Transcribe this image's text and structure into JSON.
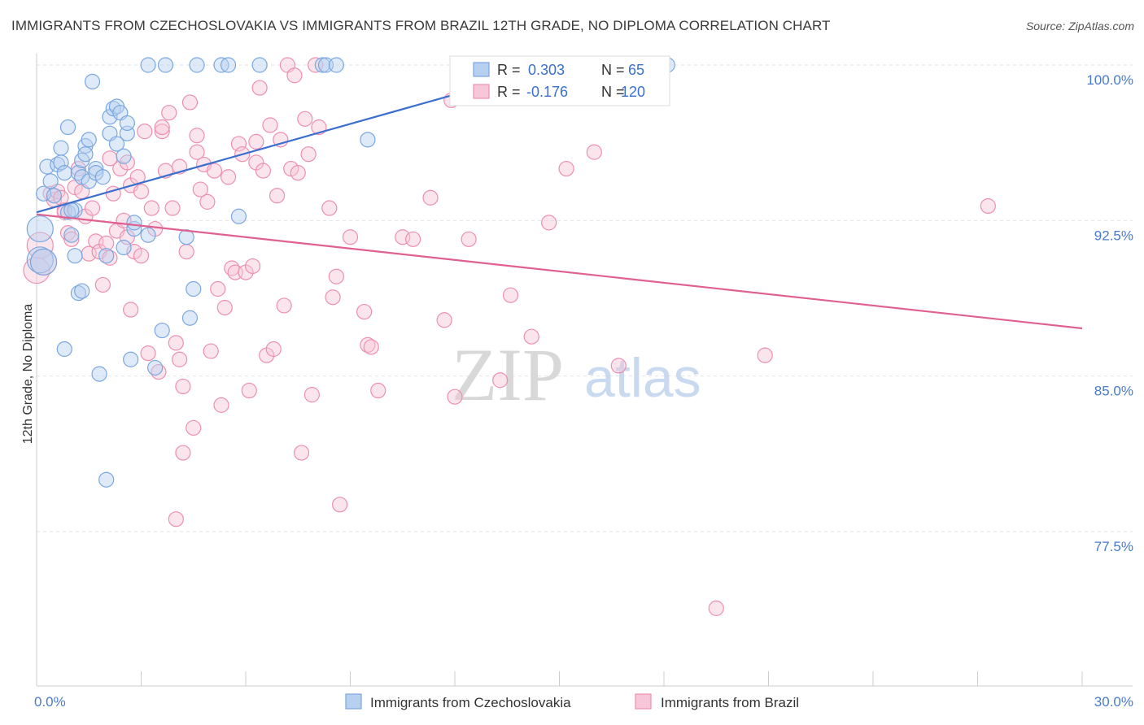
{
  "title": "IMMIGRANTS FROM CZECHOSLOVAKIA VS IMMIGRANTS FROM BRAZIL 12TH GRADE, NO DIPLOMA CORRELATION CHART",
  "source": "Source: ZipAtlas.com",
  "watermark": {
    "zip": "ZIP",
    "atlas": "atlas"
  },
  "colors": {
    "blue": "#7aa7e0",
    "blue_fill": "#b8d0f0",
    "pink": "#ec8fb0",
    "pink_fill": "#f7c6d8",
    "blue_line": "#3a6fd0",
    "pink_line": "#e0608f",
    "tick": "#4a7bc8"
  },
  "legend": {
    "r_label": "R =",
    "n_label": "N =",
    "blue": {
      "r": "0.303",
      "n": "65"
    },
    "pink": {
      "r": "-0.176",
      "n": "120"
    }
  },
  "bottom_legend": {
    "czech": "Immigrants from Czechoslovakia",
    "brazil": "Immigrants from Brazil"
  },
  "chart_data": {
    "type": "scatter",
    "title": "IMMIGRANTS FROM CZECHOSLOVAKIA VS IMMIGRANTS FROM BRAZIL 12TH GRADE, NO DIPLOMA CORRELATION CHART",
    "xlabel": "",
    "ylabel": "12th Grade, No Diploma",
    "xlim": [
      0,
      30
    ],
    "ylim": [
      71.0,
      101.0
    ],
    "x_tick_labels": [
      "0.0%",
      "30.0%"
    ],
    "y_ticks": [
      77.5,
      85.0,
      92.5,
      100.0
    ],
    "y_tick_labels": [
      "77.5%",
      "85.0%",
      "92.5%",
      "100.0%"
    ],
    "series": [
      {
        "name": "Immigrants from Czechoslovakia",
        "color": "#7aa7e0",
        "trend": {
          "x": [
            0,
            15
          ],
          "y": [
            92.9,
            100.0
          ]
        },
        "points": [
          [
            0.1,
            92.1
          ],
          [
            0.1,
            90.6
          ],
          [
            0.2,
            93.8
          ],
          [
            0.3,
            95.1
          ],
          [
            0.4,
            94.4
          ],
          [
            0.5,
            93.7
          ],
          [
            0.6,
            95.2
          ],
          [
            0.7,
            96.0
          ],
          [
            0.7,
            95.3
          ],
          [
            0.8,
            94.8
          ],
          [
            0.9,
            92.9
          ],
          [
            0.9,
            97.0
          ],
          [
            1.0,
            91.8
          ],
          [
            1.1,
            90.8
          ],
          [
            1.1,
            93.0
          ],
          [
            1.2,
            94.8
          ],
          [
            1.2,
            89.0
          ],
          [
            1.3,
            95.4
          ],
          [
            1.3,
            89.1
          ],
          [
            1.3,
            94.6
          ],
          [
            1.4,
            96.1
          ],
          [
            1.4,
            95.7
          ],
          [
            1.5,
            96.4
          ],
          [
            1.5,
            94.4
          ],
          [
            1.6,
            99.2
          ],
          [
            1.7,
            95.0
          ],
          [
            1.7,
            94.8
          ],
          [
            1.8,
            85.1
          ],
          [
            1.9,
            94.6
          ],
          [
            2.0,
            90.8
          ],
          [
            2.0,
            80.0
          ],
          [
            2.1,
            97.5
          ],
          [
            2.1,
            96.7
          ],
          [
            2.2,
            97.9
          ],
          [
            2.3,
            96.2
          ],
          [
            2.3,
            98.0
          ],
          [
            2.4,
            97.7
          ],
          [
            2.5,
            95.6
          ],
          [
            2.5,
            91.2
          ],
          [
            2.6,
            96.7
          ],
          [
            2.6,
            97.2
          ],
          [
            2.7,
            85.8
          ],
          [
            2.8,
            92.1
          ],
          [
            2.8,
            92.4
          ],
          [
            3.2,
            91.8
          ],
          [
            3.2,
            100.0
          ],
          [
            3.4,
            85.4
          ],
          [
            3.6,
            87.2
          ],
          [
            3.7,
            100.0
          ],
          [
            4.3,
            91.7
          ],
          [
            4.4,
            87.8
          ],
          [
            4.5,
            89.2
          ],
          [
            4.6,
            100.0
          ],
          [
            5.3,
            100.0
          ],
          [
            5.5,
            100.0
          ],
          [
            5.8,
            92.7
          ],
          [
            6.4,
            100.0
          ],
          [
            8.2,
            100.0
          ],
          [
            8.3,
            100.0
          ],
          [
            8.6,
            100.0
          ],
          [
            9.5,
            96.4
          ],
          [
            18.1,
            100.0
          ],
          [
            0.8,
            86.3
          ],
          [
            0.2,
            90.5
          ],
          [
            1.0,
            93.0
          ]
        ]
      },
      {
        "name": "Immigrants from Brazil",
        "color": "#ec8fb0",
        "trend": {
          "x": [
            0,
            30
          ],
          "y": [
            92.8,
            87.3
          ]
        },
        "points": [
          [
            0.0,
            90.1
          ],
          [
            0.1,
            91.3
          ],
          [
            0.2,
            90.5
          ],
          [
            0.4,
            93.8
          ],
          [
            0.5,
            93.5
          ],
          [
            0.6,
            93.9
          ],
          [
            0.7,
            93.6
          ],
          [
            0.8,
            93.0
          ],
          [
            0.8,
            92.9
          ],
          [
            0.9,
            91.9
          ],
          [
            1.0,
            91.6
          ],
          [
            1.1,
            94.1
          ],
          [
            1.2,
            95.0
          ],
          [
            1.3,
            93.9
          ],
          [
            1.4,
            92.7
          ],
          [
            1.5,
            90.9
          ],
          [
            1.6,
            93.1
          ],
          [
            1.7,
            91.5
          ],
          [
            1.8,
            91.0
          ],
          [
            1.9,
            89.4
          ],
          [
            2.0,
            91.4
          ],
          [
            2.1,
            90.7
          ],
          [
            2.1,
            95.5
          ],
          [
            2.2,
            93.8
          ],
          [
            2.3,
            92.0
          ],
          [
            2.4,
            95.0
          ],
          [
            2.5,
            92.5
          ],
          [
            2.6,
            95.3
          ],
          [
            2.6,
            91.7
          ],
          [
            2.7,
            94.2
          ],
          [
            2.7,
            88.2
          ],
          [
            2.8,
            91.0
          ],
          [
            2.9,
            94.6
          ],
          [
            3.0,
            90.8
          ],
          [
            3.0,
            93.9
          ],
          [
            3.1,
            96.8
          ],
          [
            3.2,
            86.1
          ],
          [
            3.3,
            93.1
          ],
          [
            3.4,
            92.1
          ],
          [
            3.5,
            85.2
          ],
          [
            3.6,
            96.8
          ],
          [
            3.6,
            97.0
          ],
          [
            3.7,
            94.9
          ],
          [
            3.8,
            97.7
          ],
          [
            3.9,
            93.1
          ],
          [
            4.0,
            86.6
          ],
          [
            4.1,
            85.8
          ],
          [
            4.1,
            95.1
          ],
          [
            4.2,
            84.5
          ],
          [
            4.3,
            91.0
          ],
          [
            4.4,
            98.2
          ],
          [
            4.5,
            82.5
          ],
          [
            4.6,
            95.8
          ],
          [
            4.6,
            96.6
          ],
          [
            4.7,
            94.0
          ],
          [
            4.8,
            95.2
          ],
          [
            4.9,
            93.4
          ],
          [
            5.0,
            86.2
          ],
          [
            5.1,
            94.9
          ],
          [
            5.2,
            89.2
          ],
          [
            5.3,
            83.6
          ],
          [
            5.4,
            88.3
          ],
          [
            5.5,
            94.6
          ],
          [
            5.6,
            90.2
          ],
          [
            5.7,
            90.0
          ],
          [
            5.8,
            96.2
          ],
          [
            5.9,
            95.7
          ],
          [
            6.0,
            90.0
          ],
          [
            6.1,
            84.3
          ],
          [
            6.2,
            90.3
          ],
          [
            6.3,
            95.3
          ],
          [
            6.4,
            98.9
          ],
          [
            6.5,
            94.9
          ],
          [
            6.6,
            86.0
          ],
          [
            6.7,
            97.1
          ],
          [
            6.8,
            86.3
          ],
          [
            6.9,
            93.7
          ],
          [
            7.0,
            96.4
          ],
          [
            7.1,
            88.4
          ],
          [
            7.2,
            100.0
          ],
          [
            7.3,
            95.0
          ],
          [
            7.4,
            99.5
          ],
          [
            7.5,
            94.8
          ],
          [
            7.6,
            81.3
          ],
          [
            7.7,
            97.4
          ],
          [
            7.8,
            95.7
          ],
          [
            7.9,
            84.1
          ],
          [
            8.0,
            100.0
          ],
          [
            8.1,
            97.0
          ],
          [
            8.4,
            93.1
          ],
          [
            8.5,
            88.8
          ],
          [
            8.6,
            89.8
          ],
          [
            8.7,
            78.8
          ],
          [
            9.0,
            91.7
          ],
          [
            9.4,
            88.1
          ],
          [
            9.5,
            86.5
          ],
          [
            9.6,
            86.4
          ],
          [
            9.8,
            84.3
          ],
          [
            10.5,
            91.7
          ],
          [
            10.8,
            91.6
          ],
          [
            11.3,
            93.6
          ],
          [
            11.7,
            87.7
          ],
          [
            11.9,
            98.3
          ],
          [
            12.0,
            84.0
          ],
          [
            12.2,
            100.0
          ],
          [
            12.4,
            91.6
          ],
          [
            13.3,
            84.8
          ],
          [
            13.6,
            88.9
          ],
          [
            14.2,
            86.9
          ],
          [
            14.7,
            92.4
          ],
          [
            15.2,
            95.0
          ],
          [
            16.0,
            95.8
          ],
          [
            16.3,
            100.0
          ],
          [
            16.7,
            85.5
          ],
          [
            19.5,
            73.8
          ],
          [
            20.9,
            86.0
          ],
          [
            27.3,
            93.2
          ],
          [
            4.2,
            81.3
          ],
          [
            4.0,
            78.1
          ],
          [
            6.3,
            96.3
          ]
        ]
      }
    ]
  }
}
